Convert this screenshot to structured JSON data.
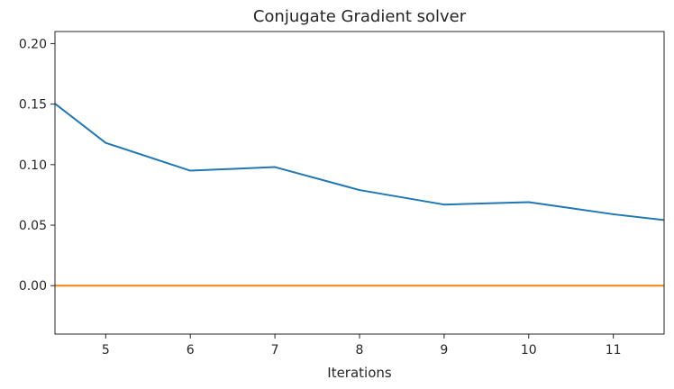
{
  "chart_data": {
    "type": "line",
    "title": "Conjugate Gradient solver",
    "xlabel": "Iterations",
    "ylabel": "",
    "xlim": [
      4.4,
      11.6
    ],
    "ylim": [
      -0.04,
      0.21
    ],
    "xticks": [
      5,
      6,
      7,
      8,
      9,
      10,
      11
    ],
    "xtick_labels": [
      "5",
      "6",
      "7",
      "8",
      "9",
      "10",
      "11"
    ],
    "yticks": [
      0.0,
      0.05,
      0.1,
      0.15,
      0.2
    ],
    "ytick_labels": [
      "0.00",
      "0.05",
      "0.10",
      "0.15",
      "0.20"
    ],
    "grid": false,
    "series": [
      {
        "color": "#1f77b4",
        "x": [
          4,
          5,
          6,
          7,
          8,
          9,
          10,
          11,
          12
        ],
        "y": [
          0.172,
          0.118,
          0.095,
          0.098,
          0.079,
          0.067,
          0.069,
          0.059,
          0.051
        ]
      },
      {
        "color": "#ff7f0e",
        "x": [
          4,
          12
        ],
        "y": [
          0.0,
          0.0
        ]
      }
    ]
  }
}
